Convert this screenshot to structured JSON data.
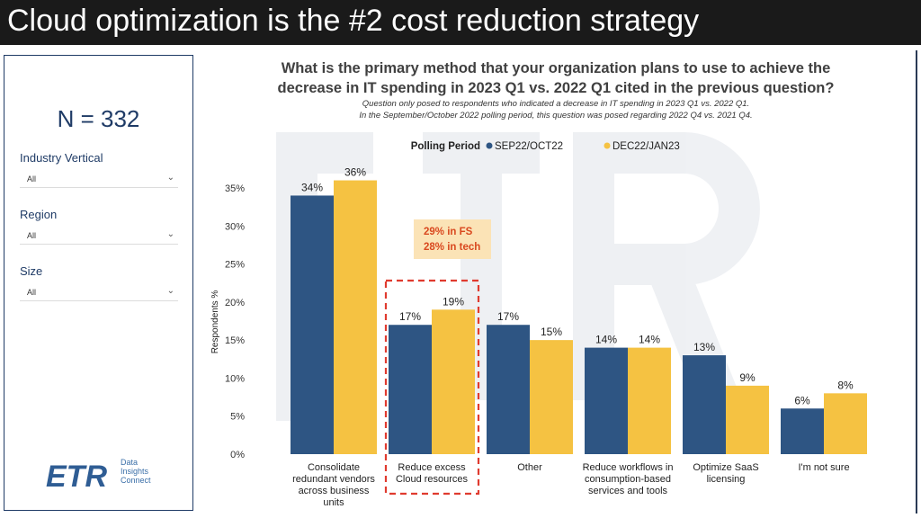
{
  "slide_title": "Cloud optimization is the #2 cost reduction strategy",
  "sidebar": {
    "n_label": "N = 332",
    "filters": [
      {
        "label": "Industry Vertical",
        "value": "All"
      },
      {
        "label": "Region",
        "value": "All"
      },
      {
        "label": "Size",
        "value": "All"
      }
    ],
    "logo": {
      "mark": "ETR",
      "lines": [
        "Data",
        "Insights",
        "Connect"
      ]
    }
  },
  "colors": {
    "series1": "#2e5583",
    "series2": "#f5c242",
    "highlight": "#e03b2f",
    "callout_bg": "#fbe3b6",
    "callout_text": "#d9481f"
  },
  "callout": {
    "line1": "29% in FS",
    "line2": "28% in tech"
  },
  "chart_data": {
    "type": "bar",
    "title": "What is the primary method that your organization plans to use to achieve the decrease in IT spending in 2023 Q1 vs. 2022 Q1 cited in the previous question?",
    "subtitle": [
      "Question only posed to respondents who indicated a decrease in IT spending in 2023 Q1 vs. 2022 Q1.",
      "In the September/October 2022 polling period, this question was posed regarding 2022 Q4 vs. 2021 Q4."
    ],
    "legend_title": "Polling Period",
    "ylabel": "Respondents %",
    "ylim": [
      0,
      35
    ],
    "yticks": [
      "0%",
      "5%",
      "10%",
      "15%",
      "20%",
      "25%",
      "30%",
      "35%"
    ],
    "categories": [
      [
        "Consolidate",
        "redundant vendors",
        "across business",
        "units"
      ],
      [
        "Reduce excess",
        "Cloud resources"
      ],
      [
        "Other"
      ],
      [
        "Reduce workflows in",
        "consumption-based",
        "services and tools"
      ],
      [
        "Optimize SaaS",
        "licensing"
      ],
      [
        "I'm not sure"
      ]
    ],
    "series": [
      {
        "name": "SEP22/OCT22",
        "values": [
          34,
          17,
          17,
          14,
          13,
          6
        ],
        "labels": [
          "34%",
          "17%",
          "17%",
          "14%",
          "13%",
          "6%"
        ]
      },
      {
        "name": "DEC22/JAN23",
        "values": [
          36,
          19,
          15,
          14,
          9,
          8
        ],
        "labels": [
          "36%",
          "19%",
          "15%",
          "14%",
          "9%",
          "8%"
        ]
      }
    ]
  }
}
